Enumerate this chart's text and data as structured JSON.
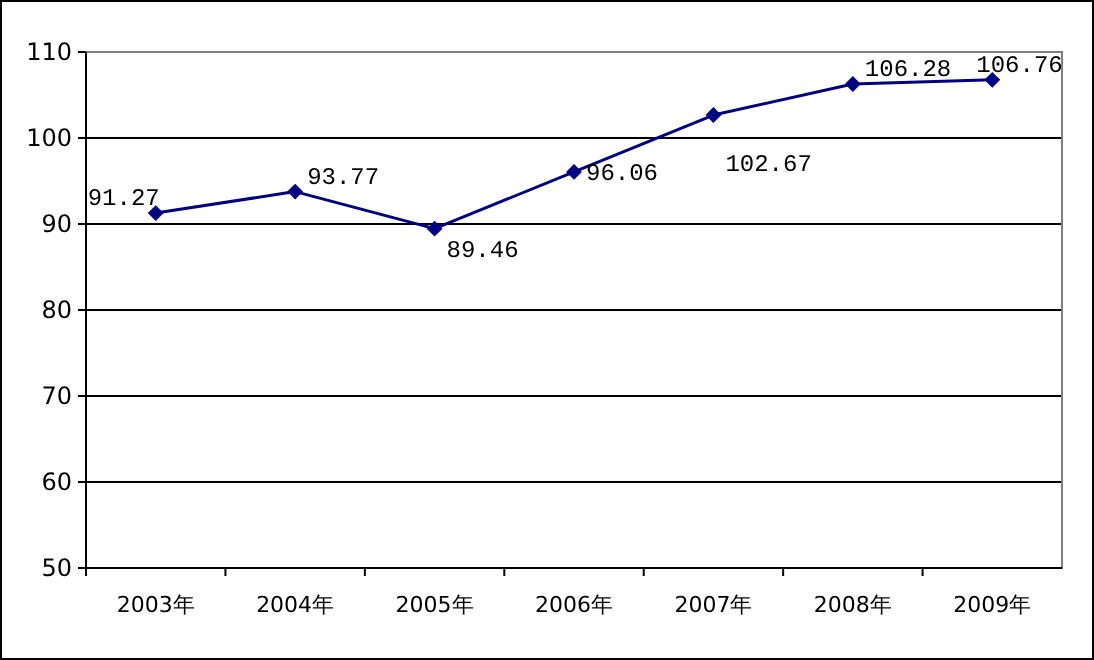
{
  "chart_data": {
    "type": "line",
    "categories": [
      "2003年",
      "2004年",
      "2005年",
      "2006年",
      "2007年",
      "2008年",
      "2009年"
    ],
    "series": [
      {
        "color": "#000080",
        "values": [
          91.27,
          93.77,
          89.46,
          96.06,
          102.67,
          106.28,
          106.76
        ]
      }
    ],
    "ylim": [
      50,
      110
    ],
    "yticks": [
      50,
      60,
      70,
      80,
      90,
      100,
      110
    ],
    "grid": "y",
    "marker": "diamond",
    "line_style": "solid",
    "data_labels": true
  }
}
